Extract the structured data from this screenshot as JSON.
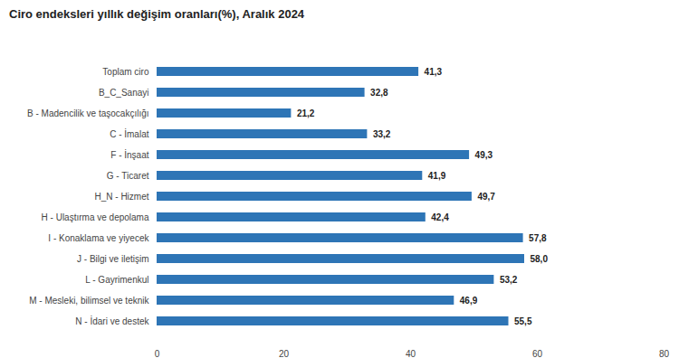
{
  "chart_data": {
    "type": "bar",
    "orientation": "horizontal",
    "title": "Ciro endeksleri yıllık değişim oranları(%), Aralık 2024",
    "categories": [
      "Toplam ciro",
      "B_C_Sanayi",
      "B - Madencilik ve taşocakçılığı",
      "C - İmalat",
      "F - İnşaat",
      "G - Ticaret",
      "H_N - Hizmet",
      "H - Ulaştırma ve depolama",
      "I - Konaklama ve yiyecek",
      "J - Bilgi ve iletişim",
      "L - Gayrimenkul",
      "M - Mesleki, bilimsel ve teknik",
      "N - İdari ve destek"
    ],
    "values": [
      41.3,
      32.8,
      21.2,
      33.2,
      49.3,
      41.9,
      49.7,
      42.4,
      57.8,
      58.0,
      53.2,
      46.9,
      55.5
    ],
    "value_labels": [
      "41,3",
      "32,8",
      "21,2",
      "33,2",
      "49,3",
      "41,9",
      "49,7",
      "42,4",
      "57,8",
      "58,0",
      "53,2",
      "46,9",
      "55,5"
    ],
    "data_labels": true,
    "color": "#2e75b6",
    "xlim": [
      0,
      80
    ],
    "xticks": [
      0,
      20,
      40,
      60,
      80
    ],
    "grid": false
  }
}
